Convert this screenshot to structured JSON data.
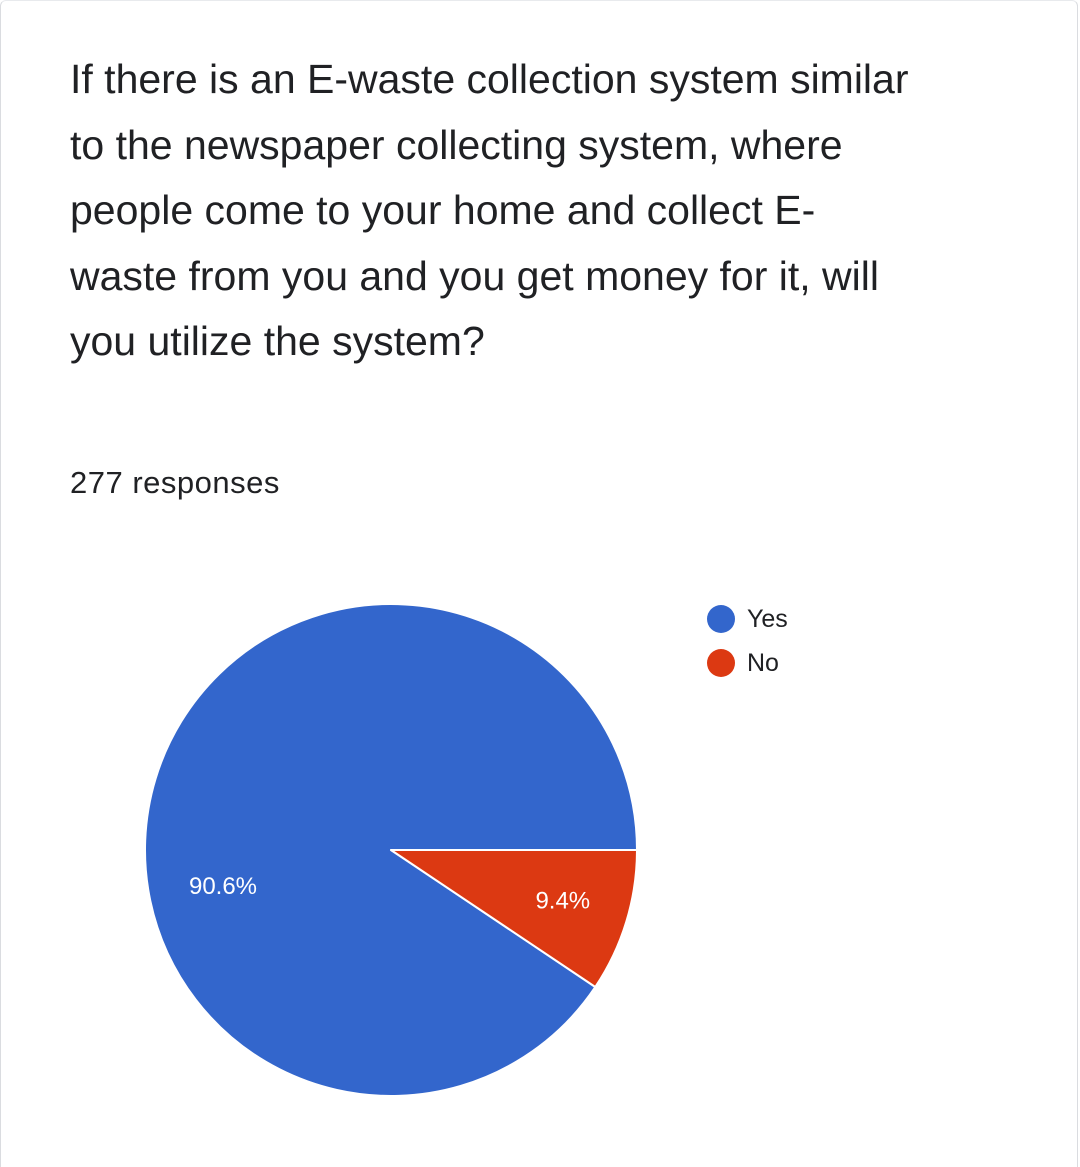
{
  "question": {
    "text": "If there is an E-waste collection system similar to the newspaper collecting system, where people come to your home and collect E-waste from you and you get money for it, will you utilize the system?"
  },
  "responses_text": "277 responses",
  "colors": {
    "yes": "#3366cc",
    "no": "#dc3912"
  },
  "chart_data": {
    "type": "pie",
    "title": "",
    "start_angle_deg": 0,
    "direction": "counterclockwise",
    "slices": [
      {
        "label": "Yes",
        "value": 90.6,
        "display": "90.6%",
        "color": "#3366cc",
        "label_color": "#ffffff"
      },
      {
        "label": "No",
        "value": 9.4,
        "display": "9.4%",
        "color": "#dc3912",
        "label_color": "#ffffff"
      }
    ],
    "legend_position": "right"
  }
}
